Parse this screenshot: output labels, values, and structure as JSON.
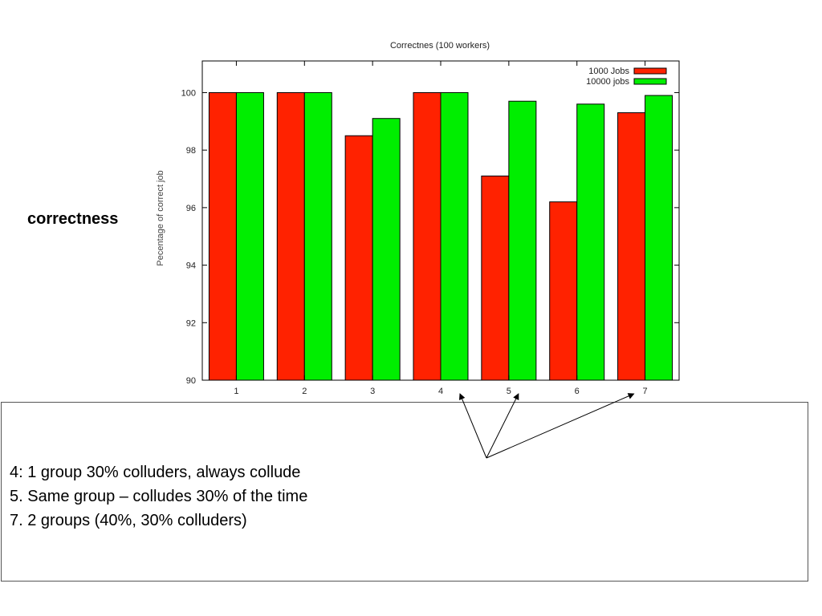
{
  "side_label": "correctness",
  "notes": [
    "4: 1 group 30% colluders, always collude",
    "5. Same group – colludes 30% of the time",
    "7. 2 groups (40%, 30% colluders)"
  ],
  "chart_data": {
    "type": "bar",
    "title": "Correctnes (100 workers)",
    "xlabel": "",
    "ylabel": "Pecentage of correct job",
    "categories": [
      "1",
      "2",
      "3",
      "4",
      "5",
      "6",
      "7"
    ],
    "ylim": [
      90,
      101.1
    ],
    "yticks": [
      90,
      92,
      94,
      96,
      98,
      100
    ],
    "legend_position": "top-right",
    "grid": false,
    "series": [
      {
        "name": "1000 Jobs",
        "color": "#ff2200",
        "values": [
          100,
          100,
          98.5,
          100,
          97.1,
          96.2,
          99.3
        ]
      },
      {
        "name": "10000 jobs",
        "color": "#00ee00",
        "values": [
          100,
          100,
          99.1,
          100,
          99.7,
          99.6,
          99.9
        ]
      }
    ]
  },
  "annotation_arrows": {
    "from_note_index": 0,
    "targets": [
      "4",
      "5",
      "7"
    ]
  }
}
